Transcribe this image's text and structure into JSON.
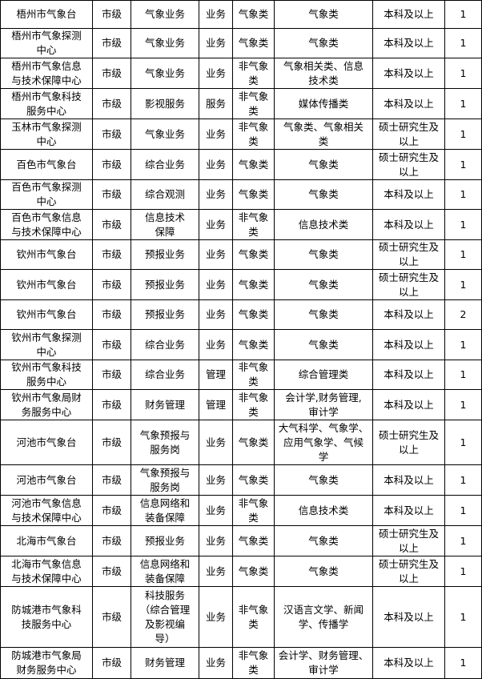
{
  "rows": [
    [
      "梧州市气象台",
      "市级",
      "气象业务",
      "业务",
      "气象类",
      "气象类",
      "本科及以上",
      "1"
    ],
    [
      "梧州市气象探测\n中心",
      "市级",
      "气象业务",
      "业务",
      "气象类",
      "气象类",
      "本科及以上",
      "1"
    ],
    [
      "梧州市气象信息\n与技术保障中心",
      "市级",
      "气象业务",
      "业务",
      "非气象\n类",
      "气象相关类、信息\n技术类",
      "本科及以上",
      "1"
    ],
    [
      "梧州市气象科技\n服务中心",
      "市级",
      "影视服务",
      "服务",
      "非气象\n类",
      "媒体传播类",
      "本科及以上",
      "1"
    ],
    [
      "玉林市气象探测\n中心",
      "市级",
      "气象业务",
      "业务",
      "非气象\n类",
      "气象类、气象相关\n类",
      "硕士研究生及\n以上",
      "1"
    ],
    [
      "百色市气象台",
      "市级",
      "综合业务",
      "业务",
      "气象类",
      "气象类",
      "硕士研究生及\n以上",
      "1"
    ],
    [
      "百色市气象探测\n中心",
      "市级",
      "综合观测",
      "业务",
      "气象类",
      "气象类",
      "本科及以上",
      "1"
    ],
    [
      "百色市气象信息\n与技术保障中心",
      "市级",
      "信息技术\n保障",
      "业务",
      "非气象\n类",
      "信息技术类",
      "本科及以上",
      "1"
    ],
    [
      "钦州市气象台",
      "市级",
      "预报业务",
      "业务",
      "气象类",
      "气象类",
      "硕士研究生及\n以上",
      "1"
    ],
    [
      "钦州市气象台",
      "市级",
      "预报业务",
      "业务",
      "气象类",
      "气象类",
      "硕士研究生及\n以上",
      "1"
    ],
    [
      "钦州市气象台",
      "市级",
      "预报业务",
      "业务",
      "气象类",
      "气象类",
      "本科及以上",
      "2"
    ],
    [
      "钦州市气象探测\n中心",
      "市级",
      "综合业务",
      "业务",
      "气象类",
      "气象类",
      "本科及以上",
      "1"
    ],
    [
      "钦州市气象科技\n服务中心",
      "市级",
      "综合业务",
      "管理",
      "非气象\n类",
      "综合管理类",
      "本科及以上",
      "1"
    ],
    [
      "钦州市气象局财\n务服务中心",
      "市级",
      "财务管理",
      "管理",
      "非气象\n类",
      "会计学,财务管理,\n审计学",
      "本科及以上",
      "1"
    ],
    [
      "河池市气象台",
      "市级",
      "气象预报与\n服务岗",
      "业务",
      "气象类",
      "大气科学、气象学、\n应用气象学、气候\n学",
      "硕士研究生及\n以上",
      "1"
    ],
    [
      "河池市气象台",
      "市级",
      "气象预报与\n服务岗",
      "业务",
      "气象类",
      "气象类",
      "本科及以上",
      "1"
    ],
    [
      "河池市气象信息\n与技术保障中心",
      "市级",
      "信息网络和\n装备保障",
      "业务",
      "非气象\n类",
      "信息技术类",
      "本科及以上",
      "1"
    ],
    [
      "北海市气象台",
      "市级",
      "预报业务",
      "业务",
      "气象类",
      "气象类",
      "硕士研究生及\n以上",
      "1"
    ],
    [
      "北海市气象信息\n与技术保障中心",
      "市级",
      "信息网络和\n装备保障",
      "业务",
      "气象类",
      "气象类",
      "硕士研究生及\n以上",
      "1"
    ],
    [
      "防城港市气象科\n技服务中心",
      "市级",
      "科技服务\n（综合管理\n及影视编\n导）",
      "业务",
      "非气象\n类",
      "汉语言文学、新闻\n学、传播学",
      "本科及以上",
      "1"
    ],
    [
      "防城港市气象局\n财务服务中心",
      "市级",
      "财务管理",
      "业务",
      "非气象\n类",
      "会计学、财务管理、\n审计学",
      "本科及以上",
      "1"
    ]
  ]
}
